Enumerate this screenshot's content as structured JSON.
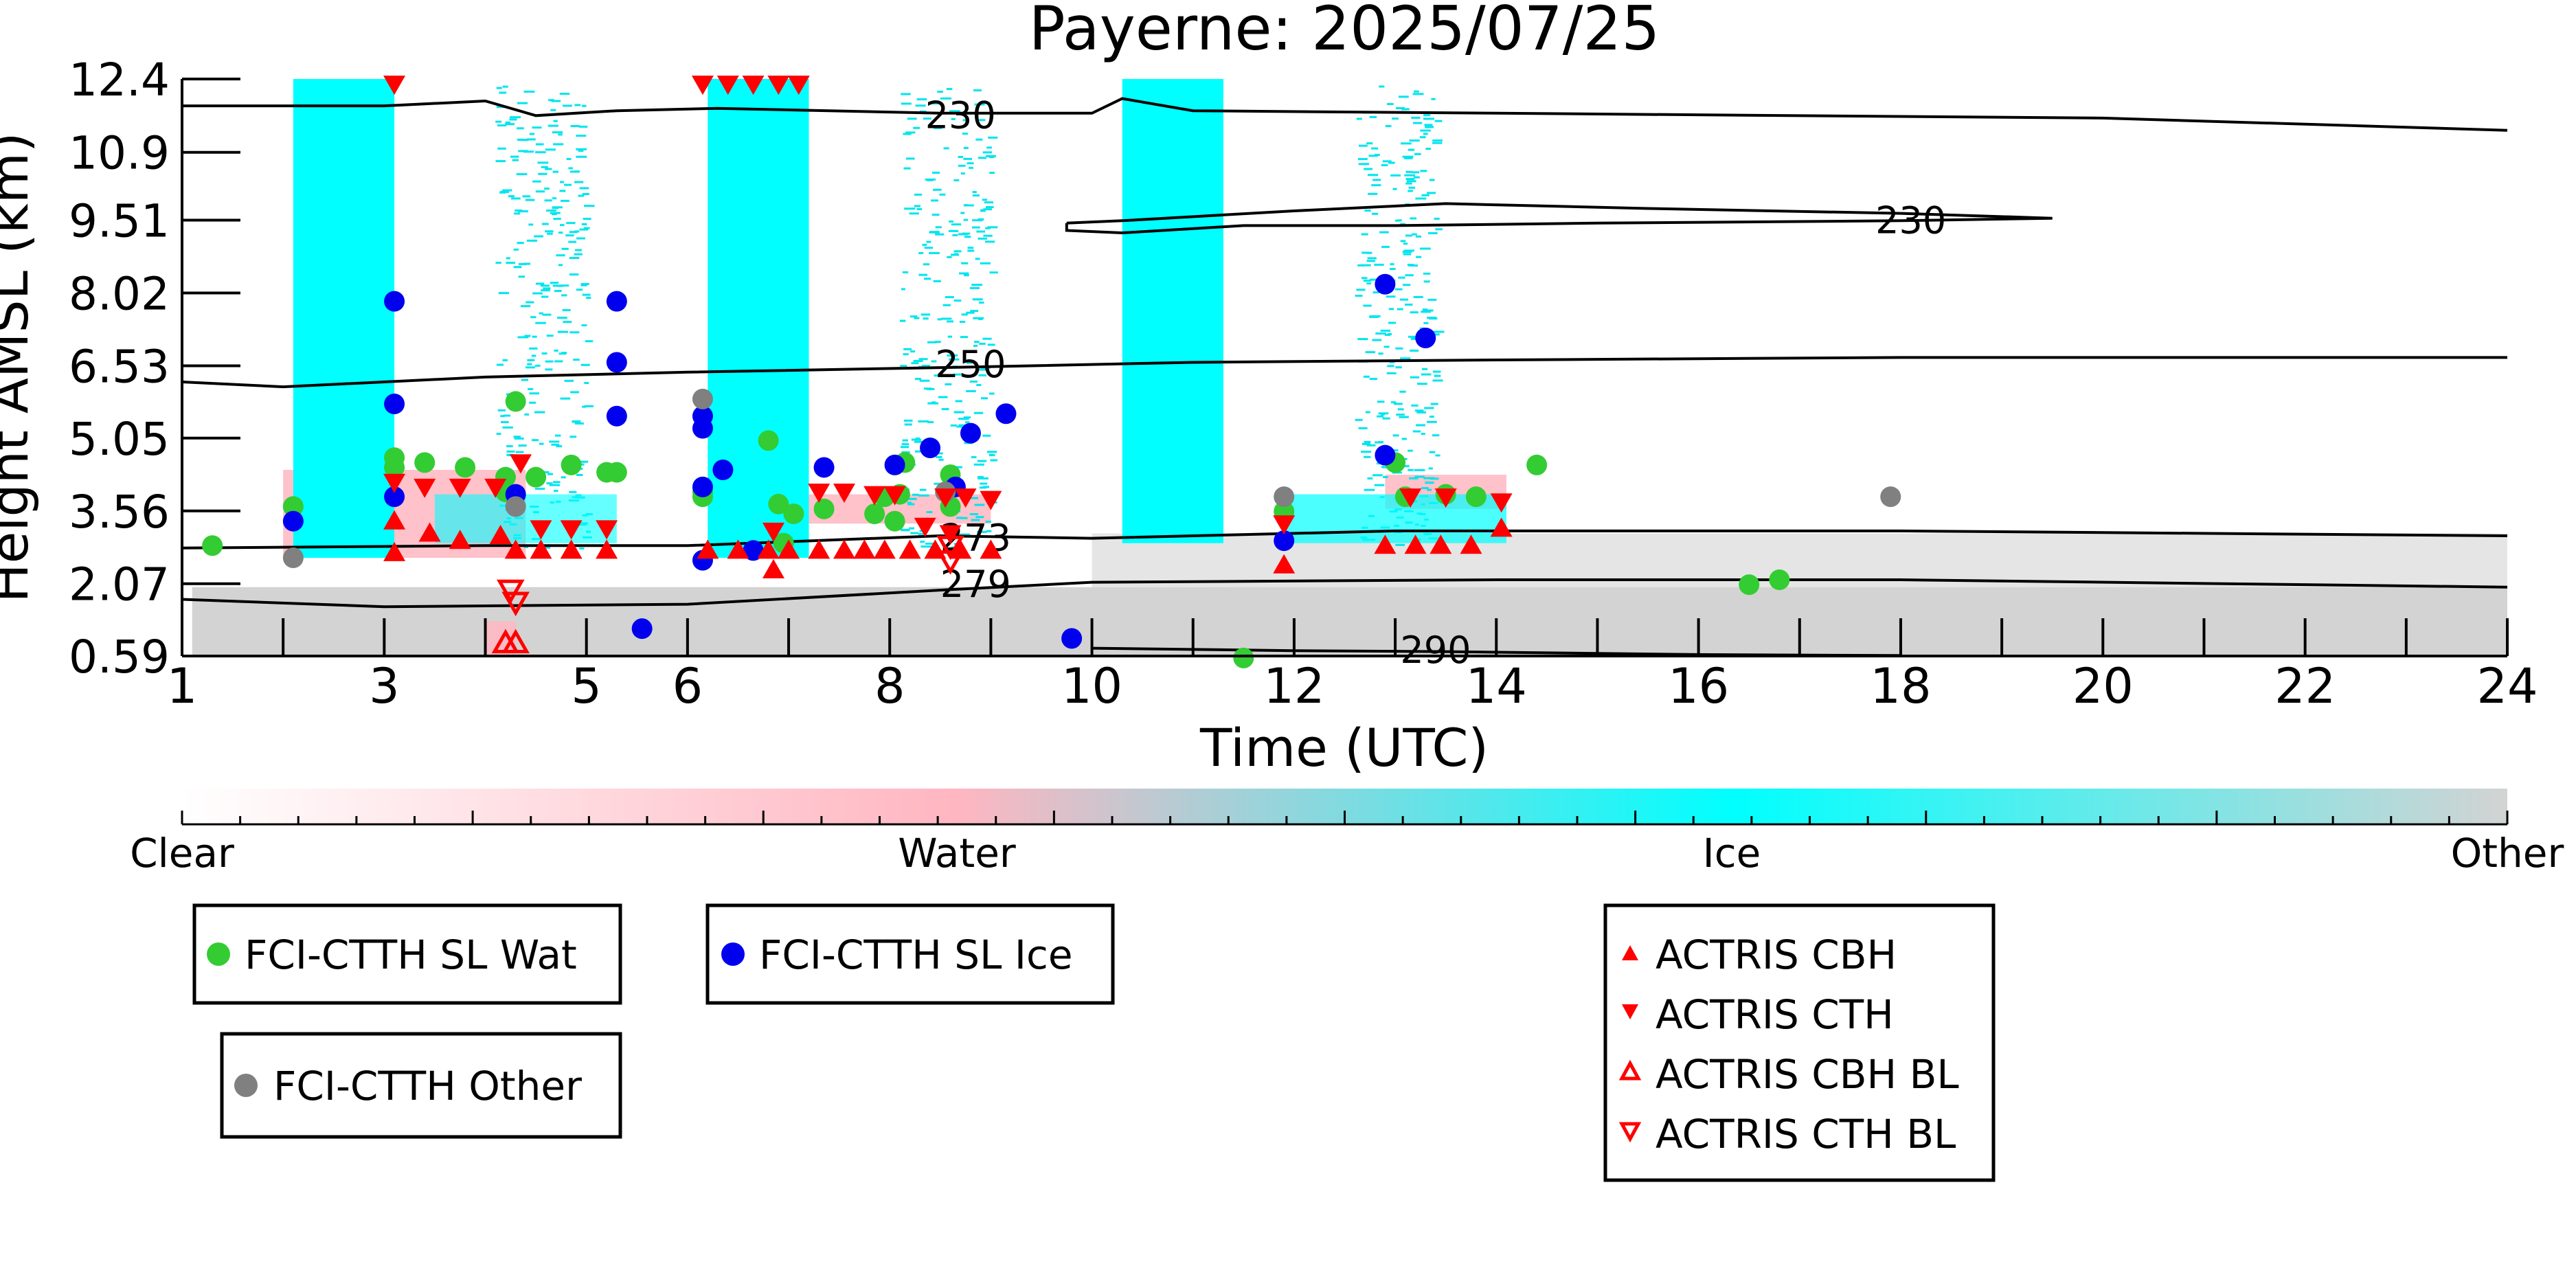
{
  "chart_data": {
    "type": "scatter",
    "title": "Payerne: 2025/07/25",
    "xlabel": "Time (UTC)",
    "ylabel": "Height AMSL (km)",
    "xlim": [
      1,
      24
    ],
    "ylim": [
      0.59,
      12.4
    ],
    "x_ticks": [
      "1",
      "3",
      "5",
      "6",
      "8",
      "10",
      "12",
      "14",
      "16",
      "18",
      "20",
      "22",
      "24"
    ],
    "y_ticks": [
      "0.59",
      "2.07",
      "3.56",
      "5.05",
      "6.53",
      "8.02",
      "9.51",
      "10.9",
      "12.4"
    ],
    "colorbar": {
      "labels": [
        "Clear",
        "Water",
        "Ice",
        "Other"
      ],
      "colors": {
        "clear": "#ffffff",
        "water": "#ffb6c1",
        "ice": "#00ffff",
        "other": "#d3d3d3"
      }
    },
    "background_bands": {
      "ice_solid": [
        [
          2.1,
          3.1
        ],
        [
          6.2,
          7.2
        ],
        [
          10.3,
          11.3
        ]
      ],
      "ice_sparse": [
        [
          4.1,
          5.0
        ],
        [
          8.1,
          9.0
        ],
        [
          12.6,
          13.4
        ]
      ]
    },
    "contours": [
      {
        "label": "230",
        "color": "#000000"
      },
      {
        "label": "230",
        "color": "#000000"
      },
      {
        "label": "250",
        "color": "#000000"
      },
      {
        "label": "273",
        "color": "#000000"
      },
      {
        "label": "279",
        "color": "#000000"
      },
      {
        "label": "290",
        "color": "#000000"
      }
    ],
    "series": [
      {
        "name": "FCI-CTTH SL Wat",
        "marker": "circle",
        "color": "#33cc33",
        "points": [
          [
            1.3,
            2.85
          ],
          [
            2.1,
            3.65
          ],
          [
            3.1,
            4.65
          ],
          [
            3.1,
            4.45
          ],
          [
            3.4,
            4.55
          ],
          [
            3.8,
            4.45
          ],
          [
            4.2,
            4.25
          ],
          [
            4.2,
            3.95
          ],
          [
            4.3,
            5.8
          ],
          [
            4.5,
            4.25
          ],
          [
            4.85,
            4.5
          ],
          [
            5.2,
            4.35
          ],
          [
            5.3,
            4.35
          ],
          [
            6.15,
            3.85
          ],
          [
            6.15,
            3.95
          ],
          [
            6.8,
            5.0
          ],
          [
            6.9,
            3.7
          ],
          [
            6.95,
            2.9
          ],
          [
            7.05,
            3.5
          ],
          [
            7.35,
            3.6
          ],
          [
            7.85,
            3.5
          ],
          [
            7.95,
            3.85
          ],
          [
            8.15,
            4.55
          ],
          [
            8.05,
            3.35
          ],
          [
            8.1,
            3.9
          ],
          [
            8.6,
            3.65
          ],
          [
            8.6,
            4.3
          ],
          [
            11.5,
            0.55
          ],
          [
            13.0,
            4.55
          ],
          [
            13.1,
            3.85
          ],
          [
            13.5,
            3.9
          ],
          [
            13.8,
            3.85
          ],
          [
            14.4,
            4.5
          ],
          [
            16.5,
            2.05
          ],
          [
            16.8,
            2.15
          ],
          [
            11.9,
            3.55
          ]
        ]
      },
      {
        "name": "FCI-CTTH SL Ice",
        "marker": "circle",
        "color": "#0000ee",
        "points": [
          [
            2.1,
            3.35
          ],
          [
            3.1,
            7.85
          ],
          [
            3.1,
            5.75
          ],
          [
            3.1,
            3.85
          ],
          [
            4.3,
            3.9
          ],
          [
            5.3,
            7.85
          ],
          [
            5.3,
            6.6
          ],
          [
            5.3,
            5.5
          ],
          [
            5.55,
            1.15
          ],
          [
            6.15,
            5.5
          ],
          [
            6.15,
            5.25
          ],
          [
            6.15,
            4.05
          ],
          [
            6.15,
            2.55
          ],
          [
            6.35,
            4.4
          ],
          [
            6.65,
            2.75
          ],
          [
            7.35,
            4.45
          ],
          [
            8.05,
            4.5
          ],
          [
            8.4,
            4.85
          ],
          [
            8.65,
            4.05
          ],
          [
            8.8,
            5.15
          ],
          [
            9.15,
            5.55
          ],
          [
            9.8,
            0.95
          ],
          [
            11.9,
            2.95
          ],
          [
            12.9,
            8.2
          ],
          [
            13.3,
            7.1
          ],
          [
            12.9,
            4.7
          ]
        ]
      },
      {
        "name": "FCI-CTTH Other",
        "marker": "circle",
        "color": "#808080",
        "points": [
          [
            2.1,
            2.6
          ],
          [
            4.3,
            3.65
          ],
          [
            6.15,
            5.85
          ],
          [
            8.55,
            3.95
          ],
          [
            11.9,
            3.85
          ],
          [
            17.9,
            3.85
          ]
        ]
      },
      {
        "name": "ACTRIS CBH",
        "marker": "triangle-up",
        "color": "#ff0000",
        "filled": true,
        "points": [
          [
            3.1,
            3.35
          ],
          [
            3.1,
            2.7
          ],
          [
            3.45,
            3.1
          ],
          [
            3.75,
            2.95
          ],
          [
            4.15,
            3.05
          ],
          [
            4.3,
            2.75
          ],
          [
            4.55,
            2.75
          ],
          [
            4.85,
            2.75
          ],
          [
            5.2,
            2.75
          ],
          [
            6.2,
            2.75
          ],
          [
            6.5,
            2.75
          ],
          [
            6.8,
            2.75
          ],
          [
            7.0,
            2.75
          ],
          [
            7.3,
            2.75
          ],
          [
            7.55,
            2.75
          ],
          [
            7.75,
            2.75
          ],
          [
            7.95,
            2.75
          ],
          [
            8.2,
            2.75
          ],
          [
            8.45,
            2.75
          ],
          [
            8.7,
            2.75
          ],
          [
            9.0,
            2.75
          ],
          [
            6.85,
            2.35
          ],
          [
            11.9,
            2.45
          ],
          [
            12.9,
            2.85
          ],
          [
            13.2,
            2.85
          ],
          [
            13.45,
            2.85
          ],
          [
            13.75,
            2.85
          ],
          [
            14.05,
            3.2
          ]
        ]
      },
      {
        "name": "ACTRIS CTH",
        "marker": "triangle-down",
        "color": "#ff0000",
        "filled": true,
        "points": [
          [
            3.1,
            12.3
          ],
          [
            6.15,
            12.3
          ],
          [
            6.4,
            12.3
          ],
          [
            6.65,
            12.3
          ],
          [
            6.9,
            12.3
          ],
          [
            7.1,
            12.3
          ],
          [
            3.1,
            4.15
          ],
          [
            3.4,
            4.05
          ],
          [
            3.75,
            4.05
          ],
          [
            4.1,
            4.05
          ],
          [
            4.35,
            4.55
          ],
          [
            4.55,
            3.2
          ],
          [
            4.85,
            3.2
          ],
          [
            5.2,
            3.2
          ],
          [
            7.3,
            3.95
          ],
          [
            7.55,
            3.95
          ],
          [
            7.85,
            3.9
          ],
          [
            8.05,
            3.9
          ],
          [
            8.55,
            3.85
          ],
          [
            8.75,
            3.85
          ],
          [
            9.0,
            3.8
          ],
          [
            8.35,
            3.25
          ],
          [
            8.6,
            3.1
          ],
          [
            11.9,
            3.3
          ],
          [
            13.15,
            3.85
          ],
          [
            13.5,
            3.85
          ],
          [
            14.05,
            3.75
          ],
          [
            6.85,
            3.15
          ]
        ]
      },
      {
        "name": "ACTRIS CBH BL",
        "marker": "triangle-up",
        "color": "#ff0000",
        "filled": false,
        "points": [
          [
            4.2,
            0.85
          ],
          [
            4.3,
            0.85
          ]
        ]
      },
      {
        "name": "ACTRIS CTH BL",
        "marker": "triangle-down",
        "color": "#ff0000",
        "filled": false,
        "points": [
          [
            4.25,
            1.95
          ],
          [
            4.3,
            1.7
          ],
          [
            8.6,
            2.55
          ],
          [
            8.6,
            2.85
          ]
        ]
      }
    ]
  }
}
